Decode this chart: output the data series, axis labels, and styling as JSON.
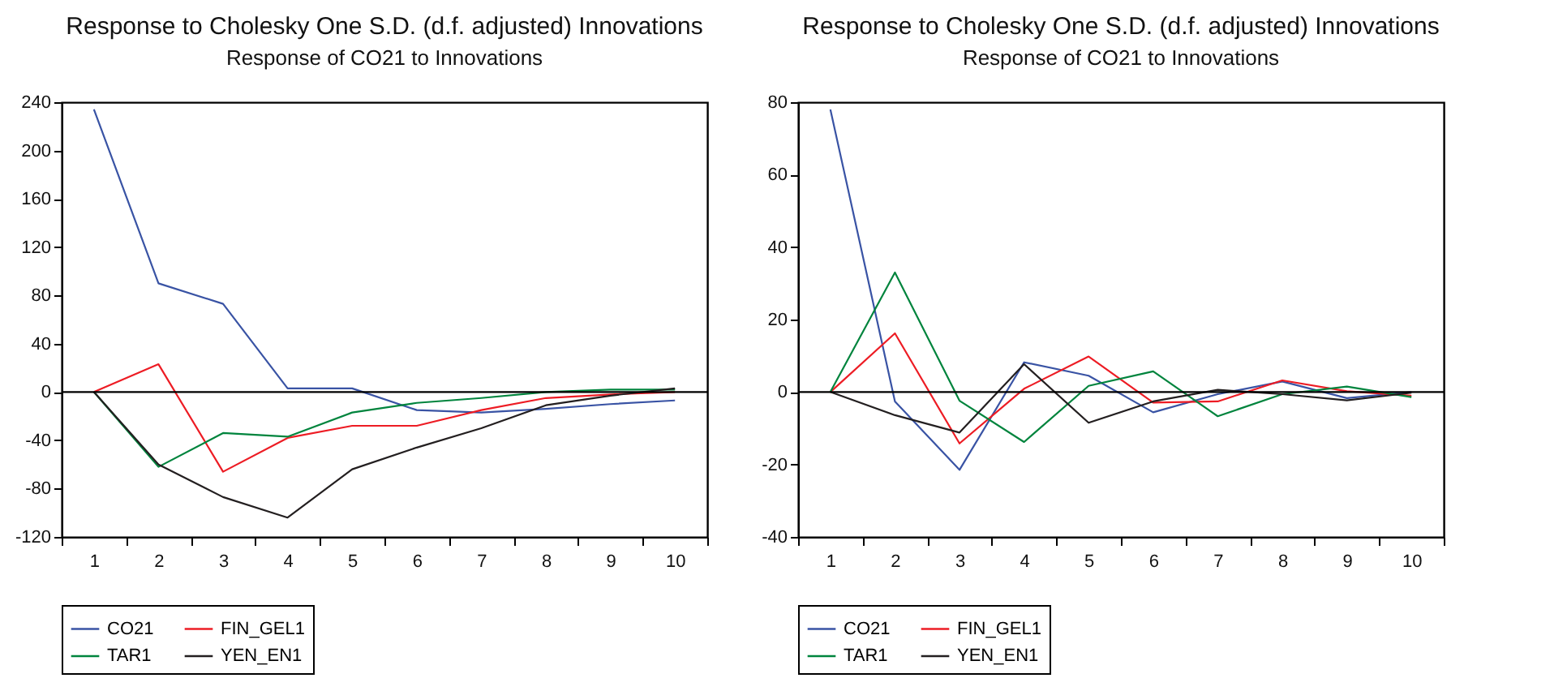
{
  "chart_data": [
    {
      "type": "line",
      "title": "Response to Cholesky One S.D. (d.f. adjusted) Innovations",
      "subtitle": "Response of CO21 to Innovations",
      "categories": [
        "1",
        "2",
        "3",
        "4",
        "5",
        "6",
        "7",
        "8",
        "9",
        "10"
      ],
      "series": [
        {
          "name": "CO21",
          "color": "#3953a4",
          "values": [
            234,
            90,
            73,
            3,
            3,
            -15,
            -17,
            -14,
            -10,
            -7
          ]
        },
        {
          "name": "FIN_GEL1",
          "color": "#ed1c24",
          "values": [
            0,
            23,
            -66,
            -38,
            -28,
            -28,
            -15,
            -5,
            -2,
            0
          ]
        },
        {
          "name": "TAR1",
          "color": "#00843d",
          "values": [
            0,
            -62,
            -34,
            -37,
            -17,
            -9,
            -5,
            0,
            2,
            2
          ]
        },
        {
          "name": "YEN_EN1",
          "color": "#231f20",
          "values": [
            0,
            -60,
            -87,
            -104,
            -64,
            -46,
            -30,
            -11,
            -3,
            3
          ]
        }
      ],
      "ylim": [
        -120,
        240
      ],
      "yticks": [
        -120,
        -80,
        -40,
        0,
        40,
        80,
        120,
        160,
        200,
        240
      ],
      "ref_lines": [
        {
          "axis": "y",
          "value": 0,
          "color": "#000000"
        }
      ],
      "grid": false,
      "legend": "bottom",
      "marker": "none",
      "line_style": "solid"
    },
    {
      "type": "line",
      "title": "Response to Cholesky One S.D. (d.f. adjusted) Innovations",
      "subtitle": "Response of CO21 to Innovations",
      "categories": [
        "1",
        "2",
        "3",
        "4",
        "5",
        "6",
        "7",
        "8",
        "9",
        "10"
      ],
      "series": [
        {
          "name": "CO21",
          "color": "#3953a4",
          "values": [
            78,
            -2.6,
            -21.5,
            8.2,
            4.5,
            -5.6,
            -0.6,
            2.9,
            -1.7,
            0
          ]
        },
        {
          "name": "FIN_GEL1",
          "color": "#ed1c24",
          "values": [
            0,
            16.2,
            -14.2,
            0.9,
            9.8,
            -2.9,
            -2.6,
            3.2,
            0.2,
            -1
          ]
        },
        {
          "name": "TAR1",
          "color": "#00843d",
          "values": [
            0,
            33,
            -2.4,
            -13.8,
            1.7,
            5.7,
            -6.7,
            -0.6,
            1.5,
            -1.4
          ]
        },
        {
          "name": "YEN_EN1",
          "color": "#231f20",
          "values": [
            0,
            -6.4,
            -11.2,
            7.7,
            -8.5,
            -2.6,
            0.6,
            -0.6,
            -2.3,
            -0.2
          ]
        }
      ],
      "ylim": [
        -40,
        80
      ],
      "yticks": [
        -40,
        -20,
        0,
        20,
        40,
        60,
        80
      ],
      "ref_lines": [
        {
          "axis": "y",
          "value": 0,
          "color": "#000000"
        }
      ],
      "grid": false,
      "legend": "bottom",
      "marker": "none",
      "line_style": "solid"
    }
  ]
}
